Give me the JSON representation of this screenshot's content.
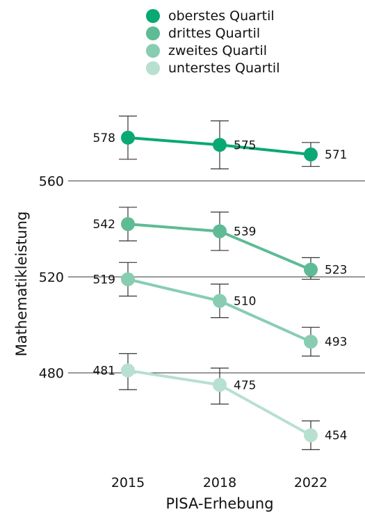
{
  "chart_data": {
    "type": "line",
    "xlabel": "PISA-Erhebung",
    "ylabel": "Mathematikleistung",
    "categories": [
      "2015",
      "2018",
      "2022"
    ],
    "y_ticks": [
      480,
      520,
      560
    ],
    "ylim": [
      446,
      589
    ],
    "grid": "horizontal lines at y ticks",
    "legend_position": "top-center",
    "series": [
      {
        "name": "oberstes Quartil",
        "color": "#0aa874",
        "values": [
          578,
          575,
          571
        ],
        "error_low": [
          569,
          565,
          566
        ],
        "error_high": [
          587,
          585,
          576
        ]
      },
      {
        "name": "drittes Quartil",
        "color": "#5ebb95",
        "values": [
          542,
          539,
          523
        ],
        "error_low": [
          535,
          531,
          519
        ],
        "error_high": [
          549,
          547,
          528
        ]
      },
      {
        "name": "zweites Quartil",
        "color": "#88cdb2",
        "values": [
          519,
          510,
          493
        ],
        "error_low": [
          512,
          503,
          487
        ],
        "error_high": [
          526,
          517,
          499
        ]
      },
      {
        "name": "unterstes Quartil",
        "color": "#b7e0d0",
        "values": [
          481,
          475,
          454
        ],
        "error_low": [
          473,
          467,
          448
        ],
        "error_high": [
          488,
          482,
          460
        ]
      }
    ]
  }
}
